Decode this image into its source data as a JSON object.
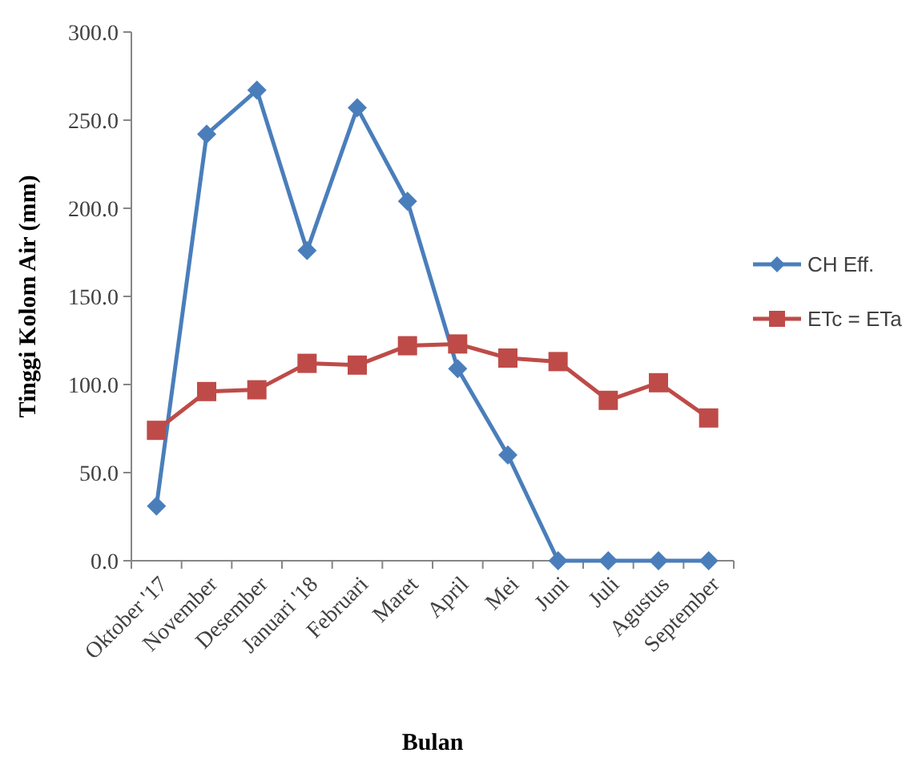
{
  "chart_data": {
    "type": "line",
    "xlabel": "Bulan",
    "ylabel": "Tinggi Kolom Air (mm)",
    "categories": [
      "Oktober '17",
      "November",
      "Desember",
      "Januari '18",
      "Februari",
      "Maret",
      "April",
      "Mei",
      "Juni",
      "Juli",
      "Agustus",
      "September"
    ],
    "series": [
      {
        "name": "CH Eff.",
        "color": "#4a7ebb",
        "marker": "diamond",
        "values": [
          31,
          242,
          267,
          176,
          257,
          204,
          109,
          60,
          0,
          0,
          0,
          0
        ]
      },
      {
        "name": "ETc = ETa",
        "color": "#be4b48",
        "marker": "square",
        "values": [
          74,
          96,
          97,
          112,
          111,
          122,
          123,
          115,
          113,
          91,
          101,
          81
        ]
      }
    ],
    "ylim": [
      0,
      300
    ],
    "yticks": [
      {
        "value": 0,
        "label": "0.0"
      },
      {
        "value": 50,
        "label": "50.0"
      },
      {
        "value": 100,
        "label": "100.0"
      },
      {
        "value": 150,
        "label": "150.0"
      },
      {
        "value": 200,
        "label": "200.0"
      },
      {
        "value": 250,
        "label": "250.0"
      },
      {
        "value": 300,
        "label": "300.0"
      }
    ],
    "grid": false,
    "legend": "right",
    "line_style": "solid"
  }
}
